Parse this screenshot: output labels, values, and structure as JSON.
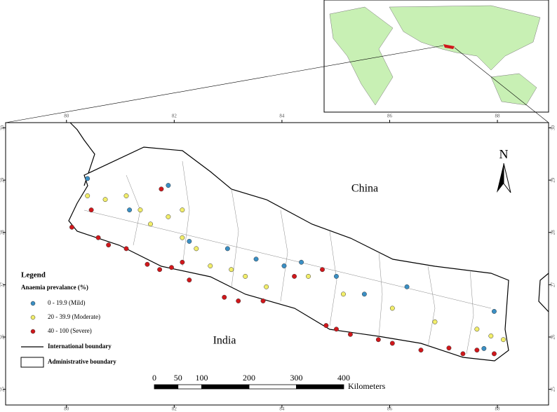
{
  "map": {
    "xlim": [
      78.87,
      88.95
    ],
    "ylim": [
      24.7,
      30.1
    ],
    "xticks": [
      80,
      82,
      84,
      86,
      88
    ],
    "yticks": [
      25,
      26,
      27,
      28,
      29,
      30
    ],
    "labels": {
      "china": "China",
      "india": "India",
      "north": "N"
    },
    "legend": {
      "title": "Legend",
      "subtitle": "Anaemia prevalance (%)",
      "items": [
        {
          "label": "0 - 19.9 (Mild)",
          "color": "#3a8fc4",
          "points": [
            [
              80.39,
              29.03
            ],
            [
              81.17,
              28.43
            ],
            [
              81.89,
              28.9
            ],
            [
              82.28,
              27.83
            ],
            [
              83.52,
              27.49
            ],
            [
              84.04,
              27.36
            ],
            [
              84.36,
              27.43
            ],
            [
              85.01,
              27.16
            ],
            [
              85.53,
              26.82
            ],
            [
              86.32,
              26.96
            ],
            [
              87.94,
              26.49
            ],
            [
              87.75,
              25.78
            ],
            [
              82.99,
              27.69
            ]
          ]
        },
        {
          "label": "20 - 39.9 (Moderate)",
          "color": "#f2ee6a",
          "points": [
            [
              80.39,
              28.7
            ],
            [
              80.72,
              28.63
            ],
            [
              81.11,
              28.7
            ],
            [
              81.56,
              28.16
            ],
            [
              81.89,
              28.3
            ],
            [
              82.15,
              28.43
            ],
            [
              82.41,
              27.69
            ],
            [
              82.67,
              27.36
            ],
            [
              83.06,
              27.29
            ],
            [
              83.32,
              27.16
            ],
            [
              83.71,
              26.96
            ],
            [
              84.49,
              27.16
            ],
            [
              85.14,
              26.82
            ],
            [
              86.05,
              26.55
            ],
            [
              86.84,
              26.29
            ],
            [
              87.62,
              26.15
            ],
            [
              87.88,
              26.02
            ],
            [
              88.11,
              25.95
            ],
            [
              82.15,
              27.9
            ],
            [
              81.37,
              28.43
            ]
          ]
        },
        {
          "label": "40 - 100 (Severe)",
          "color": "#d0171b",
          "points": [
            [
              80.1,
              28.1
            ],
            [
              80.59,
              27.9
            ],
            [
              80.78,
              27.76
            ],
            [
              81.11,
              27.69
            ],
            [
              81.5,
              27.39
            ],
            [
              81.73,
              27.29
            ],
            [
              81.95,
              27.33
            ],
            [
              82.15,
              27.43
            ],
            [
              82.28,
              27.09
            ],
            [
              82.93,
              26.76
            ],
            [
              83.19,
              26.69
            ],
            [
              83.65,
              26.69
            ],
            [
              84.82,
              26.22
            ],
            [
              85.01,
              26.15
            ],
            [
              85.27,
              26.05
            ],
            [
              85.79,
              25.95
            ],
            [
              86.05,
              25.88
            ],
            [
              86.58,
              25.75
            ],
            [
              87.1,
              25.79
            ],
            [
              87.36,
              25.68
            ],
            [
              87.62,
              25.75
            ],
            [
              87.94,
              25.68
            ],
            [
              84.23,
              27.16
            ],
            [
              84.75,
              27.29
            ],
            [
              80.46,
              28.43
            ],
            [
              81.76,
              28.83
            ]
          ]
        }
      ],
      "international": "International boundary",
      "administrative": "Administrative boundary"
    },
    "scalebar": {
      "ticks": [
        0,
        50,
        100,
        200,
        300,
        400
      ],
      "unit": "Kilometers"
    }
  }
}
